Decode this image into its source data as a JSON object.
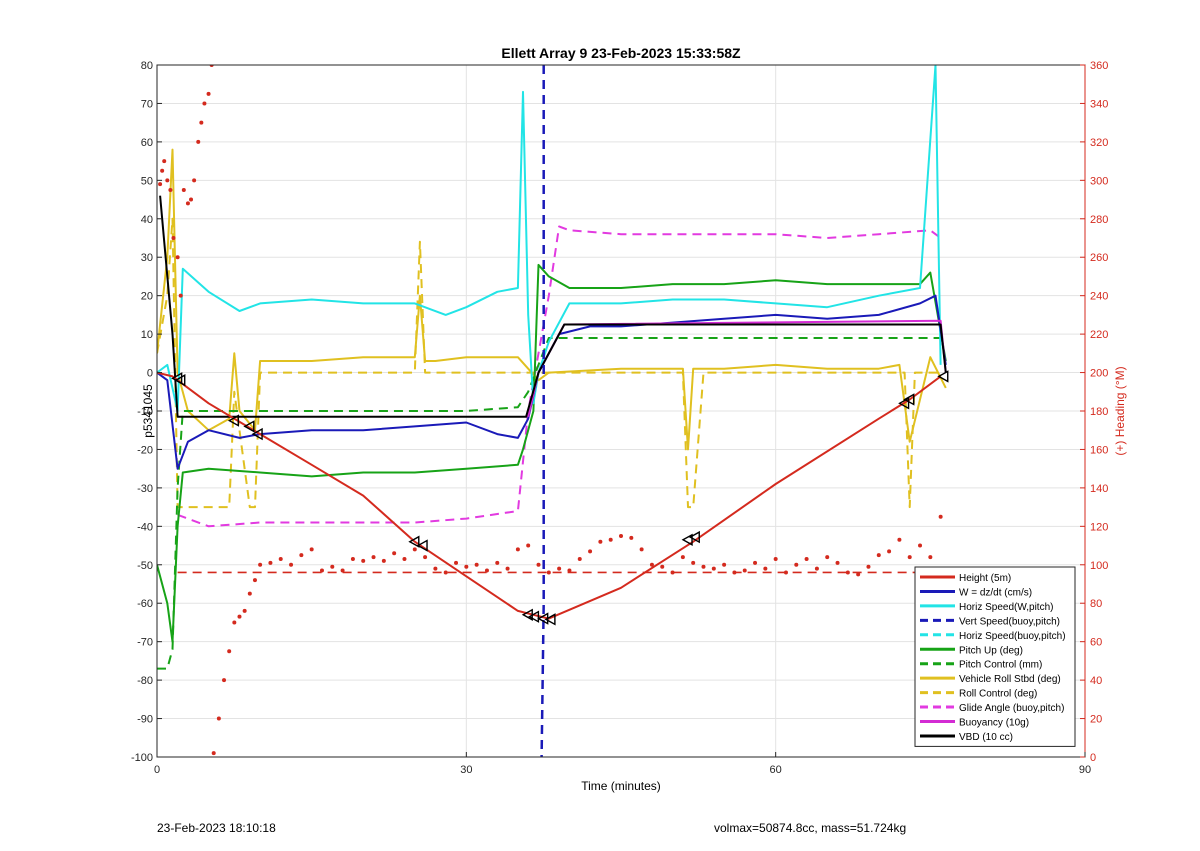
{
  "chart_data": {
    "type": "line",
    "title": "Ellett Array 9 23-Feb-2023 15:33:58Z",
    "xlabel": "Time (minutes)",
    "ylabel": "p5341045",
    "y2label": "(+) Heading (°M)",
    "xlim": [
      0,
      90
    ],
    "ylim": [
      -100,
      80
    ],
    "y2lim": [
      0,
      360
    ],
    "xticks": [
      0,
      30,
      60,
      90
    ],
    "yticks": [
      -100,
      -90,
      -80,
      -70,
      -60,
      -50,
      -40,
      -30,
      -20,
      -10,
      0,
      10,
      20,
      30,
      40,
      50,
      60,
      70,
      80
    ],
    "y2ticks": [
      0,
      20,
      40,
      60,
      80,
      100,
      120,
      140,
      160,
      180,
      200,
      220,
      240,
      260,
      280,
      300,
      320,
      340,
      360
    ],
    "grid": true,
    "legend_position": "bottom-right",
    "series": [
      {
        "name": "Height (5m)",
        "color": "#d42a1e",
        "style": "solid",
        "width": 2,
        "x": [
          0,
          1.5,
          2,
          5,
          10,
          15,
          20,
          25,
          30,
          35,
          36.5,
          38,
          45,
          52,
          60,
          70,
          73,
          76
        ],
        "y": [
          0,
          -1,
          -2,
          -8,
          -16,
          -24,
          -32,
          -44,
          -53,
          -62,
          -63,
          -64,
          -56,
          -44,
          -29,
          -12,
          -7,
          -1
        ]
      },
      {
        "name": "W = dz/dt (cm/s)",
        "color": "#1a1ab8",
        "style": "solid",
        "width": 2,
        "x": [
          0,
          1,
          2,
          3,
          5,
          8,
          10,
          15,
          20,
          25,
          30,
          33,
          35,
          36,
          37,
          38,
          39,
          42,
          45,
          50,
          55,
          60,
          65,
          70,
          74,
          75.5,
          76.5
        ],
        "y": [
          0,
          -2,
          -25,
          -18,
          -15,
          -17,
          -16,
          -15,
          -15,
          -14,
          -13,
          -16,
          -17,
          -12,
          0,
          5,
          10,
          12,
          12,
          13,
          14,
          15,
          14,
          15,
          18,
          20,
          2
        ]
      },
      {
        "name": "Horiz Speed(W,pitch)",
        "color": "#22e4e6",
        "style": "solid",
        "width": 2,
        "x": [
          0,
          1,
          2,
          2.5,
          5,
          8,
          10,
          15,
          20,
          25,
          28,
          30,
          33,
          35,
          35.5,
          36,
          36.5,
          37,
          38,
          40,
          45,
          50,
          55,
          60,
          65,
          70,
          74,
          75.5,
          76
        ],
        "y": [
          0,
          2,
          -10,
          27,
          21,
          16,
          18,
          19,
          18,
          18,
          15,
          17,
          21,
          22,
          73,
          15,
          -8,
          0,
          8,
          18,
          18,
          19,
          19,
          18,
          17,
          20,
          22,
          80,
          2
        ]
      },
      {
        "name": "Vert Speed(buoy,pitch)",
        "color": "#1a1ab8",
        "style": "dashed",
        "width": 2.5,
        "x": [
          37.5,
          37.5,
          37.3
        ],
        "y": [
          80,
          -60,
          -100
        ]
      },
      {
        "name": "Horiz Speed(buoy,pitch)",
        "color": "#22e4e6",
        "style": "dashed",
        "width": 2,
        "x": [],
        "y": []
      },
      {
        "name": "Pitch Up (deg)",
        "color": "#17a317",
        "style": "solid",
        "width": 2,
        "x": [
          0,
          1,
          1.5,
          2,
          2.5,
          5,
          10,
          15,
          20,
          25,
          30,
          35,
          35.5,
          36.5,
          37,
          38,
          40,
          45,
          50,
          55,
          60,
          65,
          70,
          74,
          75,
          76.5
        ],
        "y": [
          -50,
          -60,
          -70,
          -40,
          -26,
          -25,
          -26,
          -27,
          -26,
          -26,
          -25,
          -24,
          -20,
          -10,
          28,
          25,
          22,
          22,
          23,
          23,
          24,
          23,
          23,
          23,
          26,
          3
        ]
      },
      {
        "name": "Pitch Control (mm)",
        "color": "#17a317",
        "style": "dashed",
        "width": 2,
        "x": [
          0,
          1,
          1.5,
          2,
          2.5,
          8,
          10,
          20,
          30,
          35,
          36,
          37,
          38,
          45,
          55,
          65,
          75,
          76
        ],
        "y": [
          -77,
          -77,
          -72,
          -30,
          -10,
          -10,
          -10,
          -10,
          -10,
          -9,
          -5,
          2,
          9,
          9,
          9,
          9,
          9,
          9
        ]
      },
      {
        "name": "Vehicle Roll Stbd (deg)",
        "color": "#e0c020",
        "style": "solid",
        "width": 2,
        "x": [
          0,
          1,
          1.5,
          2,
          3,
          5,
          7,
          7.5,
          8,
          9.5,
          10,
          11,
          15,
          20,
          25,
          25.5,
          26,
          27,
          30,
          35,
          36,
          37,
          38,
          45,
          51,
          51.5,
          52,
          55,
          60,
          65,
          70,
          72,
          73,
          75,
          76.5
        ],
        "y": [
          5,
          30,
          58,
          0,
          -10,
          -15,
          -12,
          5,
          -10,
          -15,
          3,
          3,
          3,
          4,
          4,
          20,
          3,
          3,
          4,
          4,
          1,
          -2,
          0,
          1,
          1,
          -20,
          1,
          1,
          2,
          1,
          1,
          2,
          -18,
          4,
          -4
        ]
      },
      {
        "name": "Roll Control (deg)",
        "color": "#e0c020",
        "style": "dashed",
        "width": 2,
        "x": [
          0,
          1,
          1.5,
          2,
          2.5,
          5,
          7,
          7.5,
          9,
          9.5,
          10,
          15,
          20,
          25,
          25.5,
          26,
          30,
          35,
          37,
          40,
          50,
          51,
          51.5,
          52,
          53,
          60,
          70,
          72.5,
          73,
          73.5,
          76
        ],
        "y": [
          5,
          20,
          40,
          -35,
          -35,
          -35,
          -35,
          -5,
          -35,
          -35,
          0,
          0,
          0,
          0,
          34,
          0,
          0,
          0,
          0,
          0,
          0,
          0,
          -35,
          -35,
          0,
          0,
          0,
          0,
          -35,
          0,
          0
        ]
      },
      {
        "name": "Glide Angle (buoy,pitch)",
        "color": "#e23ae0",
        "style": "dashed",
        "width": 2,
        "x": [
          2,
          3,
          5,
          10,
          15,
          20,
          25,
          30,
          35,
          36,
          37,
          38,
          39,
          40,
          45,
          50,
          55,
          60,
          65,
          70,
          75,
          76
        ],
        "y": [
          -37,
          -38,
          -40,
          -39,
          -39,
          -39,
          -39,
          -38,
          -36,
          -10,
          5,
          20,
          38,
          37,
          36,
          36,
          36,
          36,
          35,
          36,
          37,
          35
        ]
      },
      {
        "name": "Buoyancy (10g)",
        "color": "#d32bd3",
        "style": "solid",
        "width": 2,
        "x": [
          36,
          37,
          39.5,
          76,
          76.5
        ],
        "y": [
          -11.5,
          0,
          12.5,
          13.5,
          0
        ]
      },
      {
        "name": "VBD (10 cc)",
        "color": "#000000",
        "style": "solid",
        "width": 2,
        "x": [
          0.3,
          1.5,
          2,
          35.8,
          37,
          39.5,
          76,
          76.5
        ],
        "y": [
          46,
          10,
          -11.5,
          -11.5,
          0,
          12.5,
          12.5,
          0
        ]
      }
    ],
    "heading_points": {
      "color": "#d42a1e",
      "axis": "right",
      "x": [
        0.3,
        0.5,
        0.7,
        1,
        1.3,
        1.6,
        2,
        2.3,
        2.6,
        3,
        3.3,
        3.6,
        4,
        4.3,
        4.6,
        5,
        5.3,
        5.5,
        6,
        6.5,
        7,
        7.5,
        8,
        8.5,
        9,
        9.5,
        10,
        11,
        12,
        13,
        14,
        15,
        16,
        17,
        18,
        19,
        20,
        21,
        22,
        23,
        24,
        25,
        26,
        27,
        28,
        29,
        30,
        31,
        32,
        33,
        34,
        35,
        36,
        37,
        38,
        39,
        40,
        41,
        42,
        43,
        44,
        45,
        46,
        47,
        48,
        49,
        50,
        51,
        52,
        53,
        54,
        55,
        56,
        57,
        58,
        59,
        60,
        61,
        62,
        63,
        64,
        65,
        66,
        67,
        68,
        69,
        70,
        71,
        72,
        73,
        74,
        75,
        76
      ],
      "y": [
        298,
        305,
        310,
        300,
        295,
        270,
        260,
        240,
        295,
        288,
        290,
        300,
        320,
        330,
        340,
        345,
        360,
        2,
        20,
        40,
        55,
        70,
        73,
        76,
        85,
        92,
        100,
        101,
        103,
        100,
        105,
        108,
        97,
        99,
        97,
        103,
        102,
        104,
        102,
        106,
        103,
        108,
        104,
        98,
        96,
        101,
        99,
        100,
        97,
        101,
        98,
        108,
        110,
        100,
        96,
        98,
        97,
        103,
        107,
        112,
        113,
        115,
        114,
        108,
        100,
        99,
        96,
        104,
        101,
        99,
        98,
        100,
        96,
        97,
        101,
        98,
        103,
        96,
        100,
        103,
        98,
        104,
        101,
        96,
        95,
        99,
        105,
        107,
        113,
        104,
        110,
        104,
        125
      ]
    },
    "markers": {
      "x": [
        2,
        2.3,
        7.5,
        9,
        9.8,
        25,
        25.8,
        36,
        36.6,
        37.5,
        38.2,
        51.5,
        52.2,
        72.5,
        73,
        76.3
      ],
      "y": [
        -1.5,
        -2,
        -12.5,
        -14,
        -16,
        -44,
        -45,
        -63,
        -63.5,
        -64,
        -64.2,
        -43.5,
        -42.8,
        -8,
        -7,
        -1
      ]
    }
  },
  "footer": {
    "timestamp": "23-Feb-2023 18:10:18",
    "info": "volmax=50874.8cc, mass=51.724kg"
  }
}
